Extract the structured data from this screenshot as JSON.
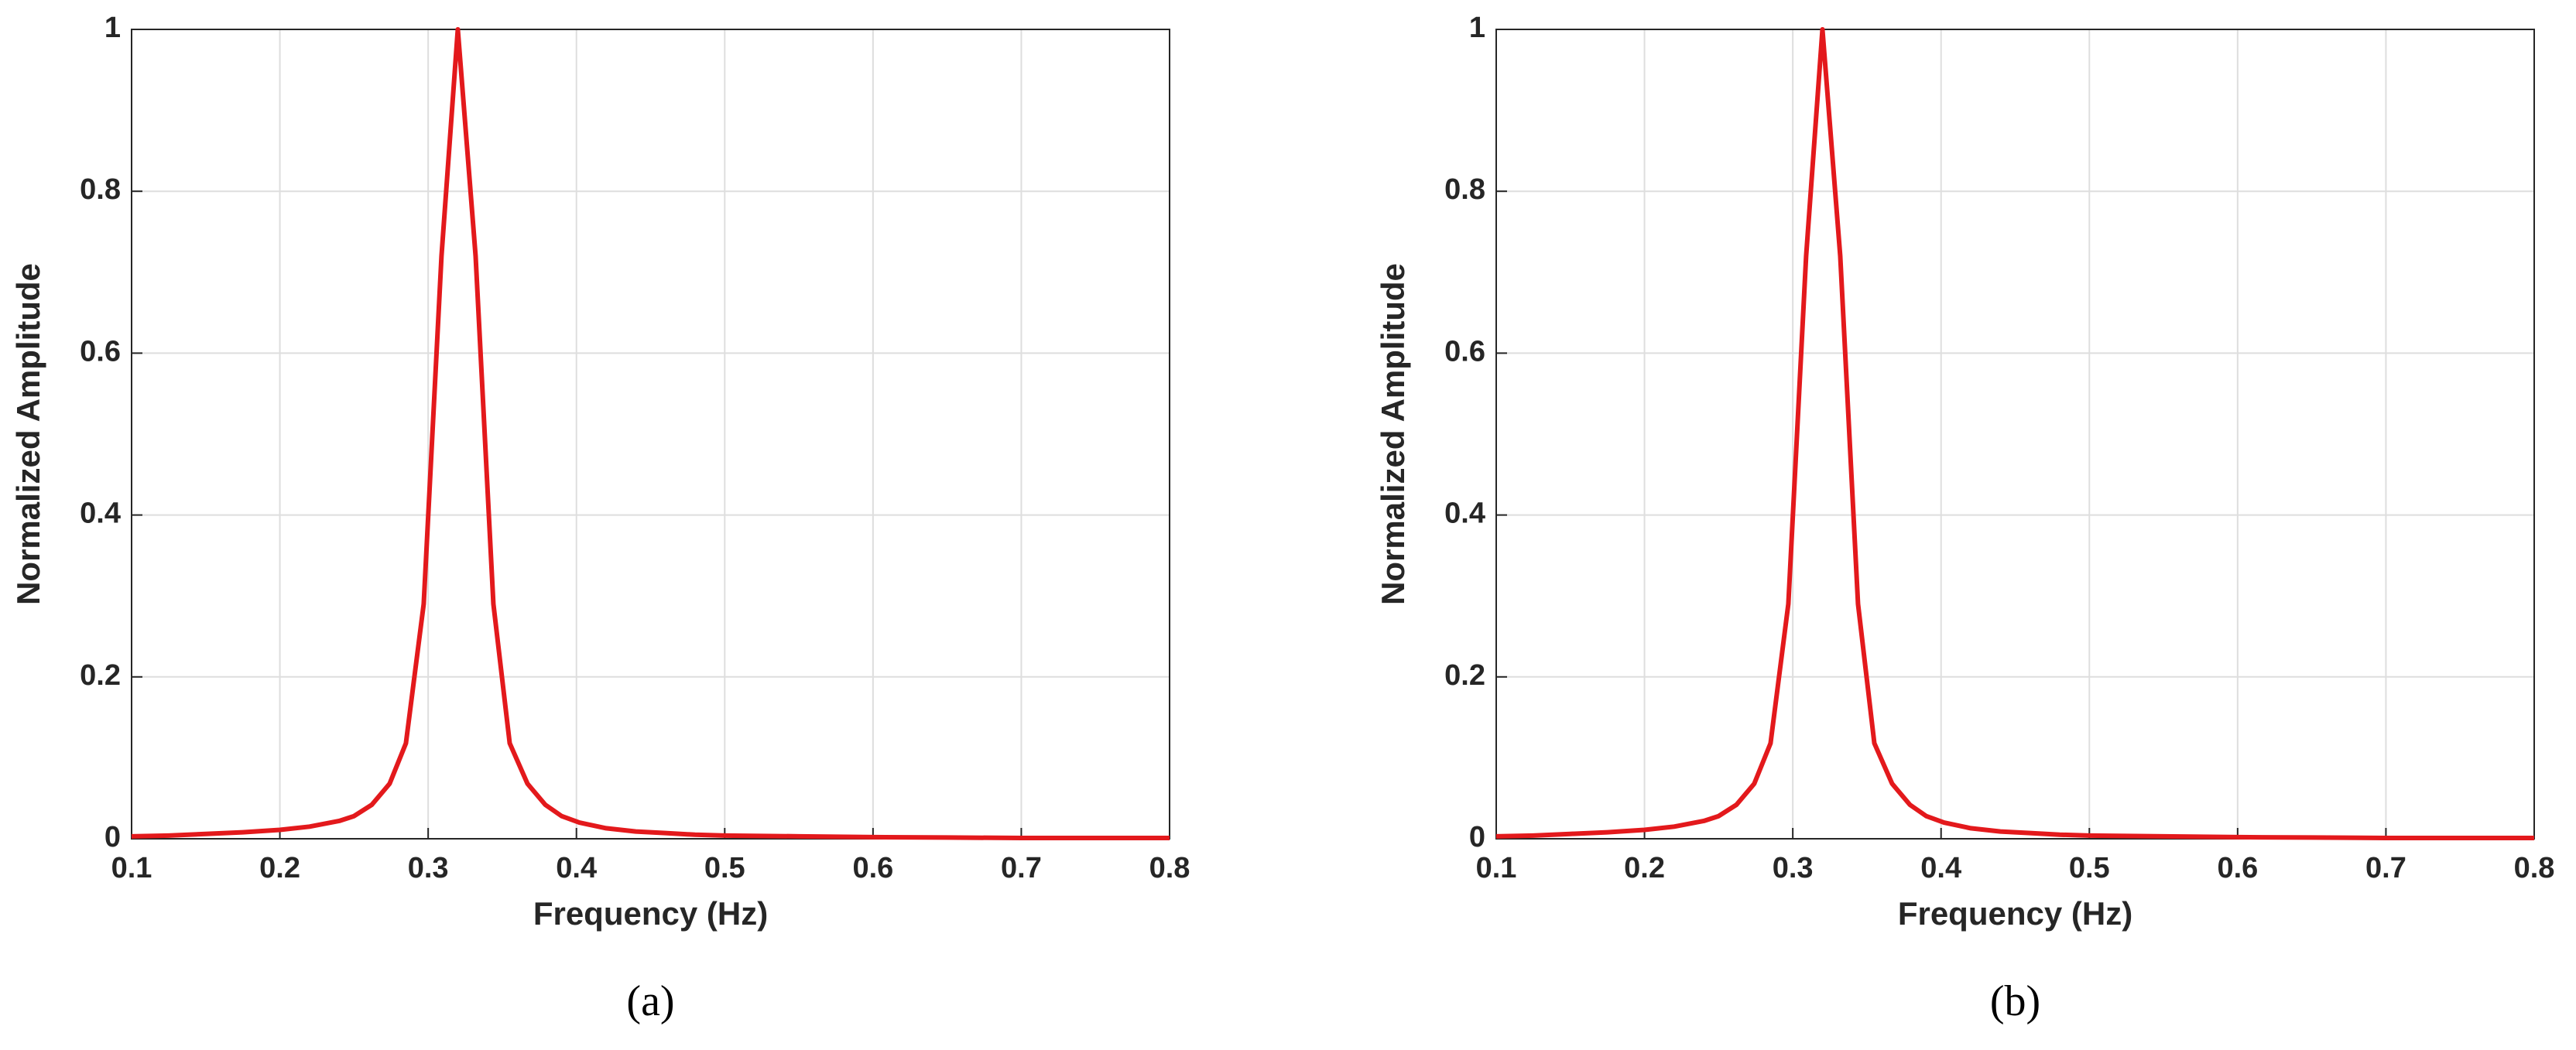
{
  "chart_data": [
    {
      "type": "line",
      "caption": "(a)",
      "xlabel": "Frequency (Hz)",
      "ylabel": "Normalized Amplitude",
      "xlim": [
        0.1,
        0.8
      ],
      "ylim": [
        0,
        1
      ],
      "xticks": [
        0.1,
        0.2,
        0.3,
        0.4,
        0.5,
        0.6,
        0.7,
        0.8
      ],
      "yticks": [
        0,
        0.2,
        0.4,
        0.6,
        0.8,
        1
      ],
      "grid": true,
      "x": [
        0.1,
        0.125,
        0.15,
        0.175,
        0.2,
        0.22,
        0.24,
        0.25,
        0.262,
        0.274,
        0.285,
        0.297,
        0.309,
        0.32,
        0.332,
        0.344,
        0.355,
        0.367,
        0.379,
        0.39,
        0.402,
        0.42,
        0.44,
        0.46,
        0.48,
        0.5,
        0.55,
        0.6,
        0.65,
        0.7,
        0.75,
        0.8
      ],
      "series": [
        {
          "name": "spectrum",
          "color": "#e3191c",
          "values": [
            0.003,
            0.004,
            0.006,
            0.008,
            0.011,
            0.015,
            0.022,
            0.028,
            0.042,
            0.068,
            0.118,
            0.29,
            0.72,
            1.0,
            0.72,
            0.29,
            0.118,
            0.068,
            0.042,
            0.028,
            0.02,
            0.013,
            0.009,
            0.007,
            0.005,
            0.004,
            0.003,
            0.002,
            0.0015,
            0.001,
            0.001,
            0.001
          ]
        }
      ]
    },
    {
      "type": "line",
      "caption": "(b)",
      "xlabel": "Frequency (Hz)",
      "ylabel": "Normalized Amplitude",
      "xlim": [
        0.1,
        0.8
      ],
      "ylim": [
        0,
        1
      ],
      "xticks": [
        0.1,
        0.2,
        0.3,
        0.4,
        0.5,
        0.6,
        0.7,
        0.8
      ],
      "yticks": [
        0,
        0.2,
        0.4,
        0.6,
        0.8,
        1
      ],
      "grid": true,
      "x": [
        0.1,
        0.125,
        0.15,
        0.175,
        0.2,
        0.22,
        0.24,
        0.25,
        0.262,
        0.274,
        0.285,
        0.297,
        0.309,
        0.32,
        0.332,
        0.344,
        0.355,
        0.367,
        0.379,
        0.39,
        0.402,
        0.42,
        0.44,
        0.46,
        0.48,
        0.5,
        0.55,
        0.6,
        0.65,
        0.7,
        0.75,
        0.8
      ],
      "series": [
        {
          "name": "spectrum",
          "color": "#e3191c",
          "values": [
            0.003,
            0.004,
            0.006,
            0.008,
            0.011,
            0.015,
            0.022,
            0.028,
            0.042,
            0.068,
            0.118,
            0.29,
            0.72,
            1.0,
            0.72,
            0.29,
            0.118,
            0.068,
            0.042,
            0.028,
            0.02,
            0.013,
            0.009,
            0.007,
            0.005,
            0.004,
            0.003,
            0.002,
            0.0015,
            0.001,
            0.001,
            0.001
          ]
        }
      ]
    }
  ]
}
